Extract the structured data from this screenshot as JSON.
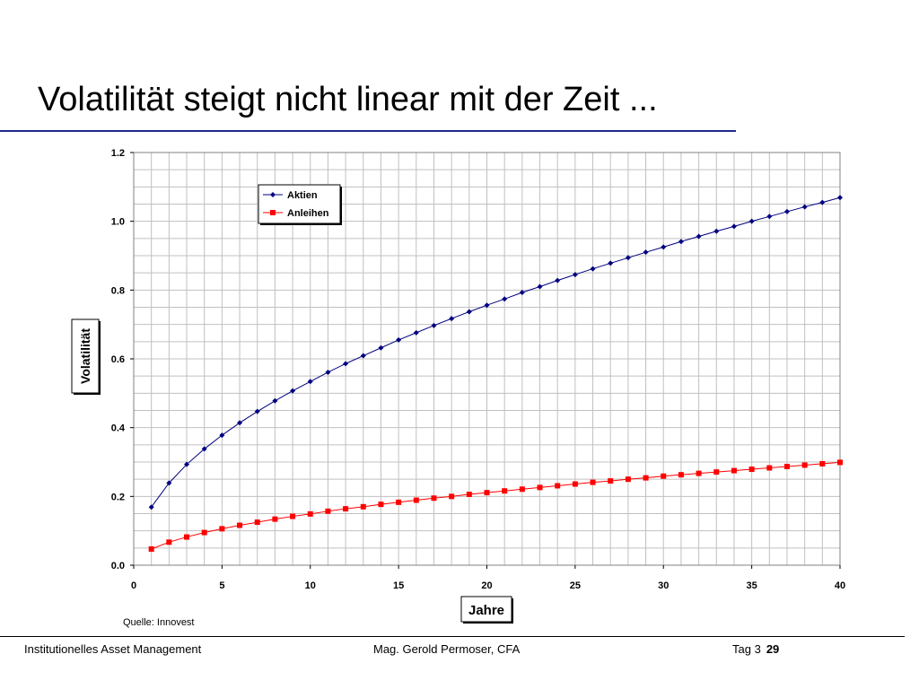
{
  "slide": {
    "title": "Volatilität steigt nicht linear mit der Zeit ..."
  },
  "source_note": "Quelle: Innovest",
  "footer": {
    "left": "Institutionelles Asset Management",
    "center": "Mag. Gerold Permoser, CFA",
    "day": "Tag 3",
    "page": "29"
  },
  "colors": {
    "title_rule": "#1f2a8c",
    "aktien": "#000080",
    "anleihen": "#ff0000",
    "grid": "#c0c0c0"
  },
  "chart_data": {
    "type": "line",
    "title": "",
    "xlabel": "Jahre",
    "ylabel": "Volatilität",
    "xlim": [
      0,
      40
    ],
    "ylim": [
      0,
      1.2
    ],
    "xticks": [
      0,
      5,
      10,
      15,
      20,
      25,
      30,
      35,
      40
    ],
    "yticks": [
      "0.0",
      "0.2",
      "0.4",
      "0.6",
      "0.8",
      "1.0",
      "1.2"
    ],
    "grid": true,
    "legend_position": "top-left",
    "x": [
      1,
      2,
      3,
      4,
      5,
      6,
      7,
      8,
      9,
      10,
      11,
      12,
      13,
      14,
      15,
      16,
      17,
      18,
      19,
      20,
      21,
      22,
      23,
      24,
      25,
      26,
      27,
      28,
      29,
      30,
      31,
      32,
      33,
      34,
      35,
      36,
      37,
      38,
      39,
      40
    ],
    "series": [
      {
        "name": "Aktien",
        "marker": "diamond",
        "values": [
          0.169,
          0.239,
          0.293,
          0.338,
          0.378,
          0.414,
          0.447,
          0.478,
          0.507,
          0.534,
          0.561,
          0.586,
          0.609,
          0.632,
          0.655,
          0.676,
          0.697,
          0.717,
          0.737,
          0.756,
          0.774,
          0.793,
          0.81,
          0.828,
          0.845,
          0.862,
          0.878,
          0.894,
          0.91,
          0.925,
          0.941,
          0.956,
          0.971,
          0.985,
          1.0,
          1.014,
          1.028,
          1.042,
          1.055,
          1.069
        ]
      },
      {
        "name": "Anleihen",
        "marker": "square",
        "values": [
          0.047,
          0.067,
          0.082,
          0.095,
          0.106,
          0.116,
          0.125,
          0.134,
          0.142,
          0.149,
          0.157,
          0.164,
          0.17,
          0.177,
          0.183,
          0.189,
          0.195,
          0.2,
          0.206,
          0.211,
          0.216,
          0.221,
          0.226,
          0.231,
          0.236,
          0.241,
          0.245,
          0.25,
          0.254,
          0.259,
          0.263,
          0.267,
          0.271,
          0.275,
          0.279,
          0.283,
          0.287,
          0.291,
          0.295,
          0.299
        ]
      }
    ]
  }
}
